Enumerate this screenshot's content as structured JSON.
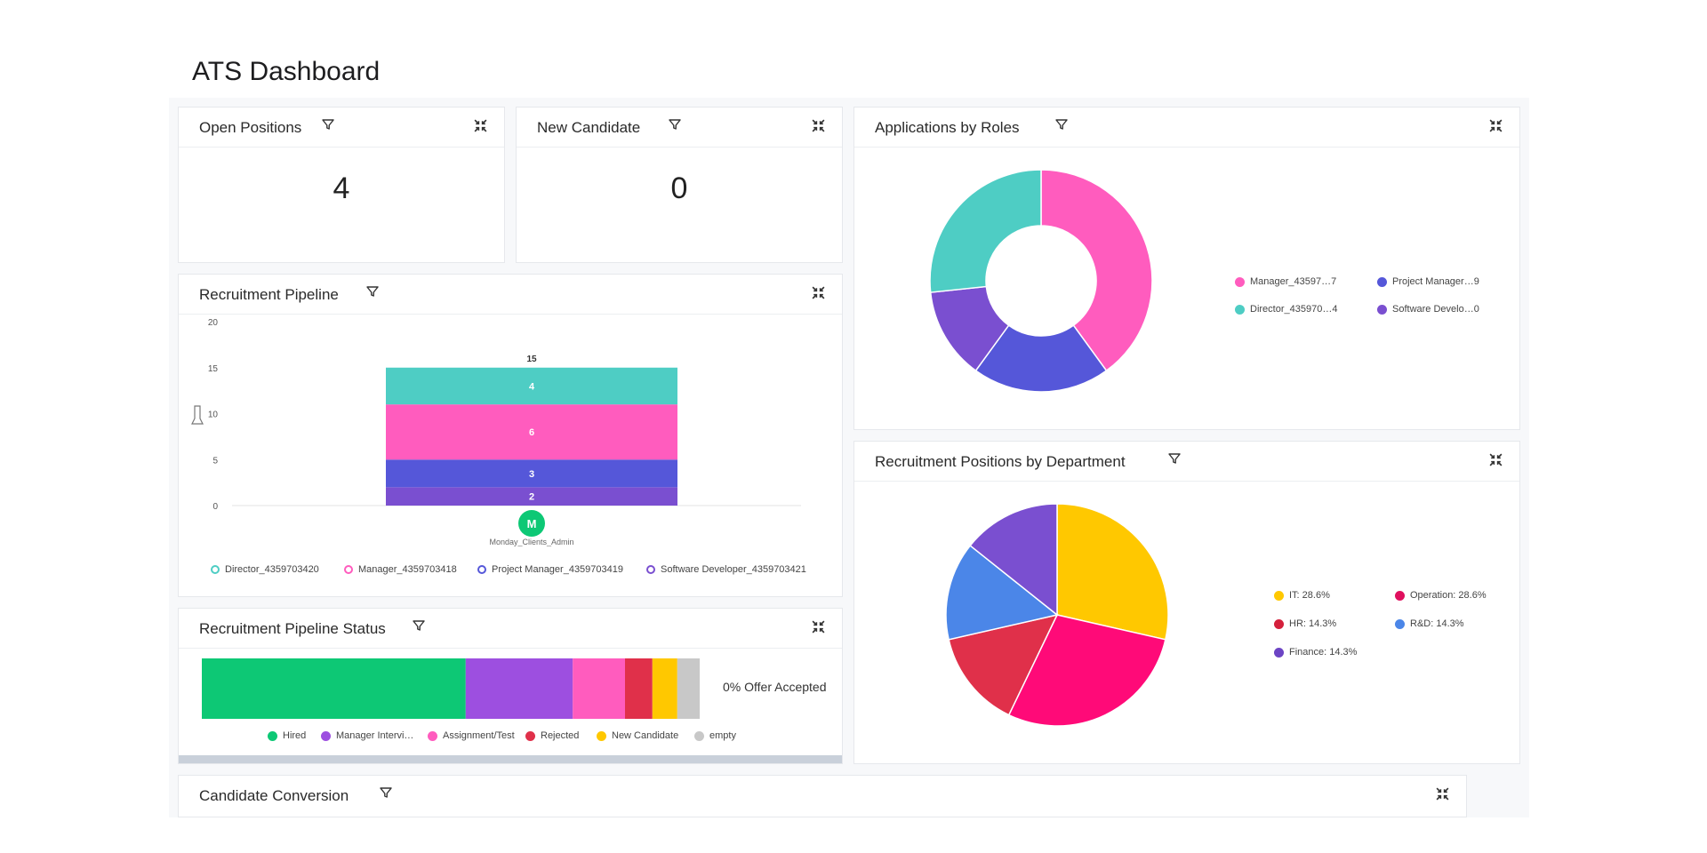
{
  "page": {
    "title": "ATS Dashboard"
  },
  "icons": {
    "filter": "filter-icon",
    "expand": "expand-icon"
  },
  "cards": {
    "open_positions": {
      "title": "Open Positions",
      "value": "4"
    },
    "new_candidate": {
      "title": "New Candidate",
      "value": "0"
    },
    "applications_by_roles": {
      "title": "Applications by Roles"
    },
    "recruitment_pipeline": {
      "title": "Recruitment Pipeline"
    },
    "recruitment_positions_by_department": {
      "title": "Recruitment Positions by Department"
    },
    "recruitment_pipeline_status": {
      "title": "Recruitment Pipeline Status"
    },
    "candidate_conversion": {
      "title": "Candidate Conversion"
    }
  },
  "chart_data": [
    {
      "id": "applications_by_roles",
      "type": "pie",
      "donut": true,
      "categories": [
        "Manager_4359703418",
        "Project Manager_4359703419",
        "Software Developer_4359703421",
        "Director_4359703420"
      ],
      "values": [
        6,
        3,
        2,
        4
      ],
      "colors": [
        "#ff5cbe",
        "#5557d9",
        "#7a4fd0",
        "#4ecdc4"
      ],
      "legend": [
        {
          "label": "Manager_43597…7",
          "color": "#ff5cbe"
        },
        {
          "label": "Project Manager…9",
          "color": "#5557d9"
        },
        {
          "label": "Director_435970…4",
          "color": "#4ecdc4"
        },
        {
          "label": "Software Develo…0",
          "color": "#7a4fd0"
        }
      ],
      "legend_position": "right"
    },
    {
      "id": "recruitment_pipeline",
      "type": "bar",
      "stacked": true,
      "categories": [
        "M"
      ],
      "category_sublabel": "Monday_Clients_Admin",
      "ylim": [
        0,
        20
      ],
      "yticks": [
        "20",
        "15",
        "10",
        "5",
        "0"
      ],
      "total_label": "15",
      "series": [
        {
          "name": "Software Developer_4359703421",
          "values": [
            2
          ],
          "color": "#7a4fd0"
        },
        {
          "name": "Project Manager_4359703419",
          "values": [
            3
          ],
          "color": "#5557d9"
        },
        {
          "name": "Manager_4359703418",
          "values": [
            6
          ],
          "color": "#ff5cbe"
        },
        {
          "name": "Director_4359703420",
          "values": [
            4
          ],
          "color": "#4ecdc4"
        }
      ],
      "legend": [
        {
          "label": "Director_4359703420",
          "color": "#4ecdc4"
        },
        {
          "label": "Manager_4359703418",
          "color": "#ff5cbe"
        },
        {
          "label": "Project Manager_4359703419",
          "color": "#5557d9"
        },
        {
          "label": "Software Developer_4359703421",
          "color": "#7a4fd0"
        }
      ],
      "legend_position": "bottom"
    },
    {
      "id": "recruitment_positions_by_department",
      "type": "pie",
      "categories": [
        "IT",
        "Operation",
        "HR",
        "R&D",
        "Finance"
      ],
      "values": [
        28.6,
        28.6,
        14.3,
        14.3,
        14.3
      ],
      "colors": [
        "#ffc800",
        "#ff0a78",
        "#e0304a",
        "#4b86e8",
        "#7a4fd0"
      ],
      "legend": [
        {
          "label": "IT: 28.6%",
          "color": "#ffc800"
        },
        {
          "label": "Operation: 28.6%",
          "color": "#e0105e"
        },
        {
          "label": "HR: 14.3%",
          "color": "#d4203c"
        },
        {
          "label": "R&D: 14.3%",
          "color": "#4b86e8"
        },
        {
          "label": "Finance: 14.3%",
          "color": "#6c44c4"
        }
      ],
      "legend_position": "right"
    },
    {
      "id": "recruitment_pipeline_status",
      "type": "bar",
      "stacked": true,
      "orientation": "horizontal",
      "categories": [
        "Hired",
        "Manager Interview",
        "Assignment/Test",
        "Rejected",
        "New Candidate",
        "empty"
      ],
      "values": [
        53,
        21.5,
        10.5,
        5.5,
        5,
        4.5
      ],
      "colors": [
        "#0dc875",
        "#9d4fe0",
        "#ff5cbe",
        "#e0304a",
        "#ffc800",
        "#c8c8c8"
      ],
      "annotation": "0% Offer Accepted",
      "legend": [
        {
          "label": "Hired",
          "color": "#0dc875"
        },
        {
          "label": "Manager Intervi…",
          "color": "#9d4fe0"
        },
        {
          "label": "Assignment/Test",
          "color": "#ff5cbe"
        },
        {
          "label": "Rejected",
          "color": "#e0304a"
        },
        {
          "label": "New Candidate",
          "color": "#ffc800"
        },
        {
          "label": "empty",
          "color": "#c8c8c8"
        }
      ],
      "legend_position": "bottom"
    }
  ]
}
